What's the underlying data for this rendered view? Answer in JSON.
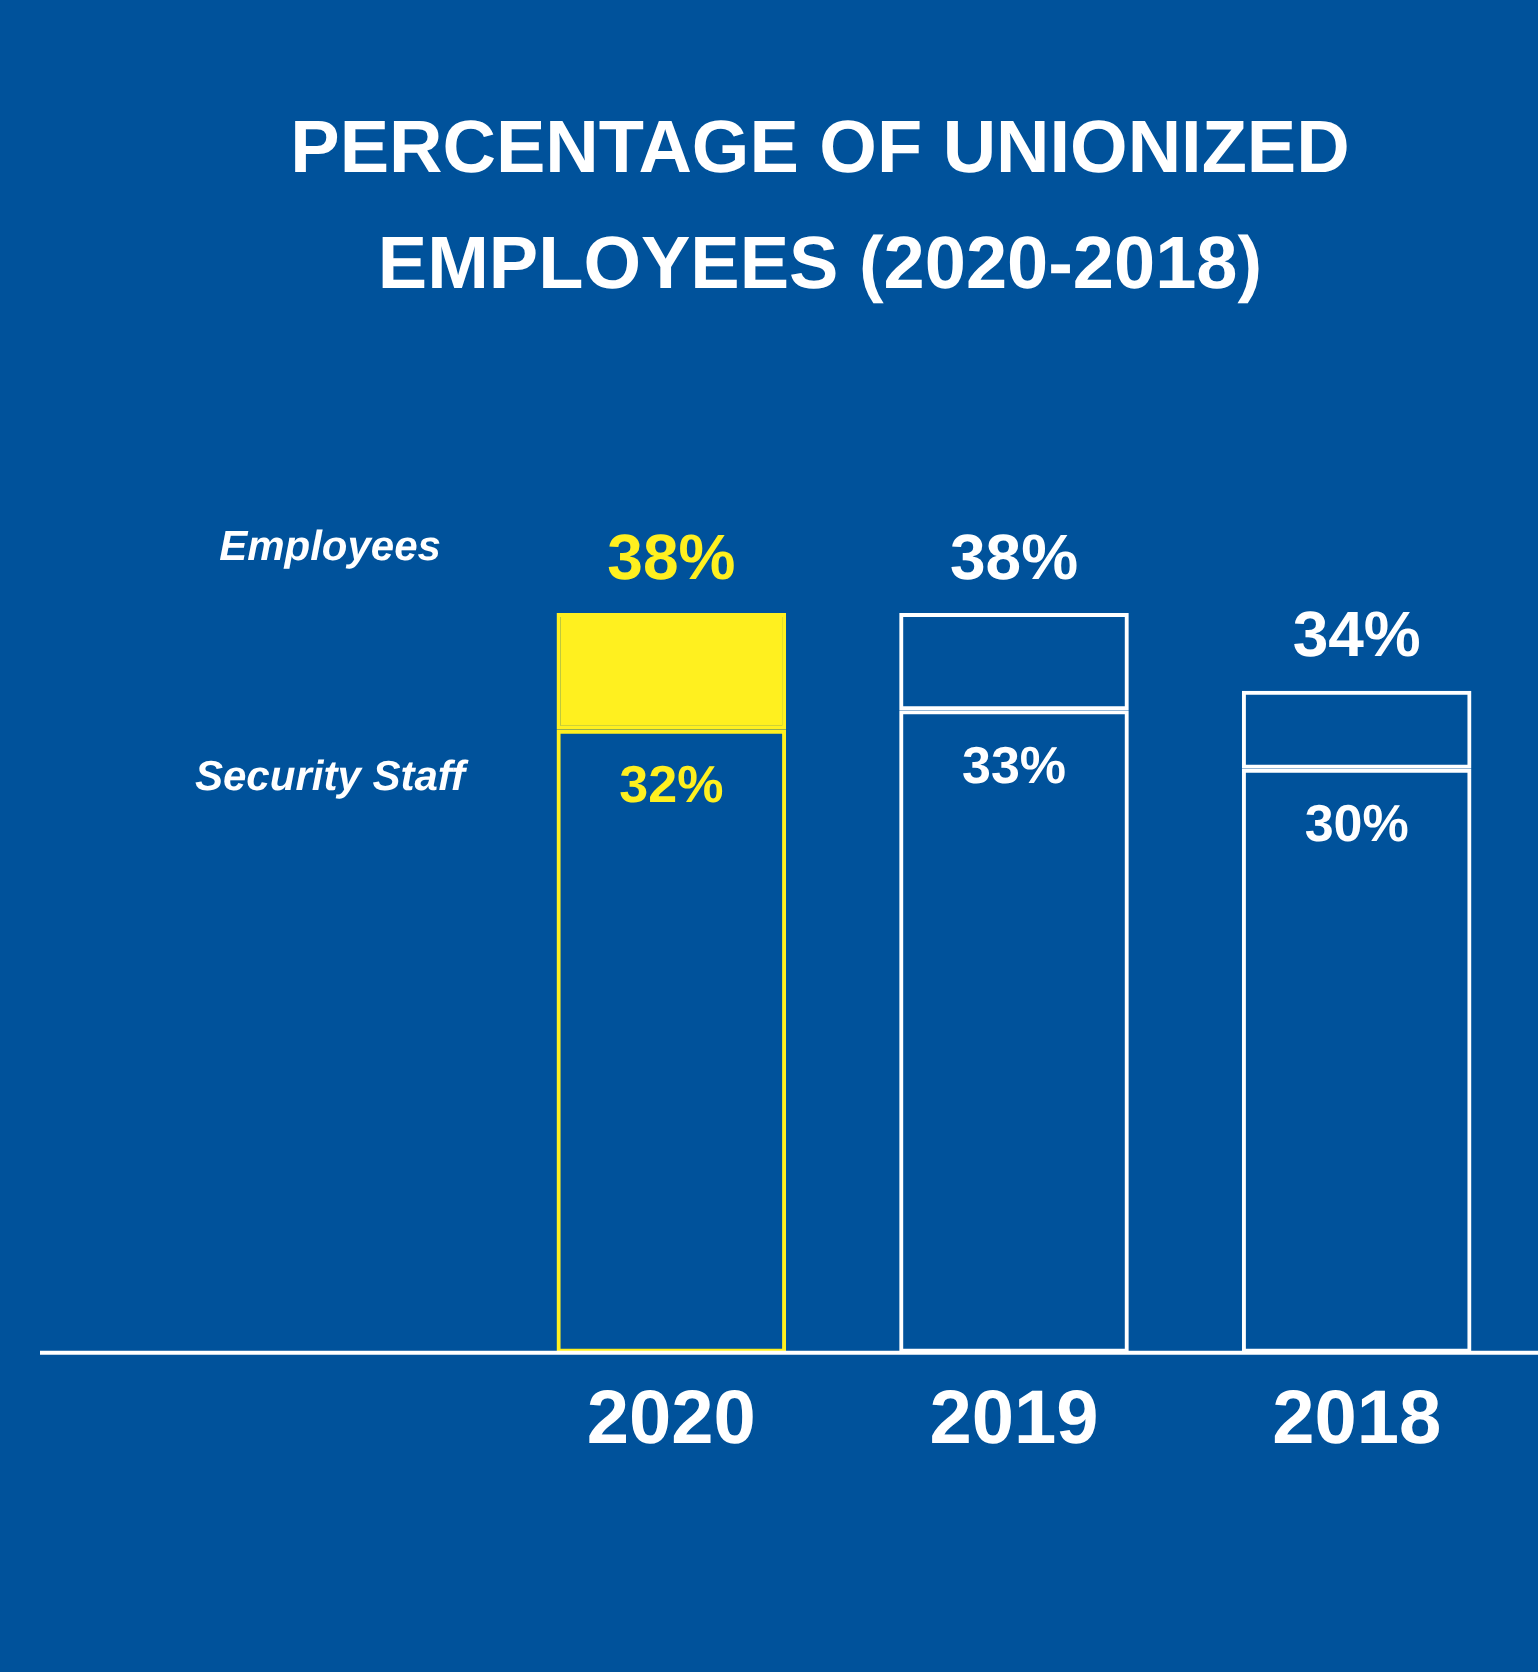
{
  "chart_data": {
    "type": "bar",
    "title": "PERCENTAGE OF UNIONIZED EMPLOYEES (2020-2018)",
    "categories": [
      "2020",
      "2019",
      "2018"
    ],
    "stacked": true,
    "legend": false,
    "grid": false,
    "tick_labels": "x",
    "series": [
      {
        "name": "Security Staff",
        "colors": [
          "#fff01f",
          "#ffffff",
          "#ffffff"
        ],
        "values": [
          32,
          33,
          30
        ],
        "value_labels": [
          "32%",
          "33%",
          "30%"
        ]
      },
      {
        "name": "Employees",
        "colors": [
          "#fff01f",
          "#ffffff",
          "#ffffff"
        ],
        "values": [
          6,
          5,
          4
        ]
      }
    ],
    "totals": [
      "38%",
      "38%",
      "34%"
    ]
  }
}
